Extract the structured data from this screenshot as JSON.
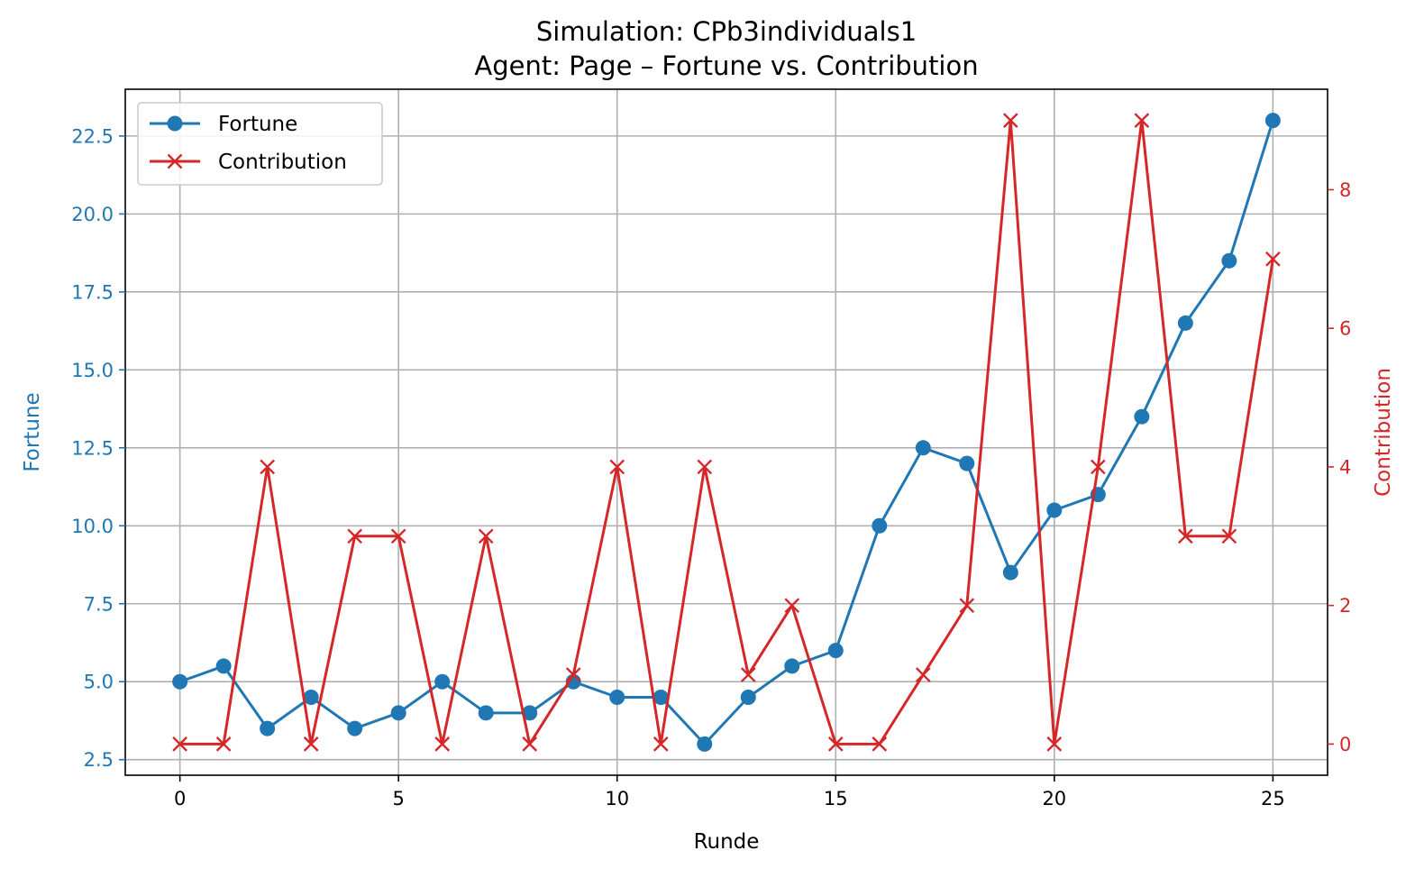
{
  "chart_data": {
    "type": "line",
    "title": "Simulation: CPb3individuals1",
    "subtitle": "Agent: Page – Fortune vs. Contribution",
    "xlabel": "Runde",
    "ylabel_left": "Fortune",
    "ylabel_right": "Contribution",
    "x": [
      0,
      1,
      2,
      3,
      4,
      5,
      6,
      7,
      8,
      9,
      10,
      11,
      12,
      13,
      14,
      15,
      16,
      17,
      18,
      19,
      20,
      21,
      22,
      23,
      24,
      25
    ],
    "xlim": [
      -1.25,
      26.25
    ],
    "ylim_left": [
      2.0,
      24.0
    ],
    "ylim_right": [
      -0.45,
      9.45
    ],
    "xticks": [
      0,
      5,
      10,
      15,
      20,
      25
    ],
    "xtick_labels": [
      "0",
      "5",
      "10",
      "15",
      "20",
      "25"
    ],
    "yticks_left": [
      2.5,
      5.0,
      7.5,
      10.0,
      12.5,
      15.0,
      17.5,
      20.0,
      22.5
    ],
    "ytick_labels_left": [
      "2.5",
      "5.0",
      "7.5",
      "10.0",
      "12.5",
      "15.0",
      "17.5",
      "20.0",
      "22.5"
    ],
    "yticks_right": [
      0,
      2,
      4,
      6,
      8
    ],
    "ytick_labels_right": [
      "0",
      "2",
      "4",
      "6",
      "8"
    ],
    "grid": true,
    "legend_position": "upper-left",
    "series": [
      {
        "name": "Fortune",
        "axis": "left",
        "color": "#1f77b4",
        "marker": "circle",
        "values": [
          5.0,
          5.5,
          3.5,
          4.5,
          3.5,
          4.0,
          5.0,
          4.0,
          4.0,
          5.0,
          4.5,
          4.5,
          3.0,
          4.5,
          5.5,
          6.0,
          10.0,
          12.5,
          12.0,
          8.5,
          10.5,
          11.0,
          13.5,
          16.5,
          18.5,
          23.0
        ]
      },
      {
        "name": "Contribution",
        "axis": "right",
        "color": "#d62728",
        "marker": "x",
        "values": [
          0,
          0,
          4,
          0,
          3,
          3,
          0,
          3,
          0,
          1,
          4,
          0,
          4,
          1,
          2,
          0,
          0,
          1,
          2,
          9,
          0,
          4,
          9,
          3,
          3,
          7
        ]
      }
    ]
  }
}
